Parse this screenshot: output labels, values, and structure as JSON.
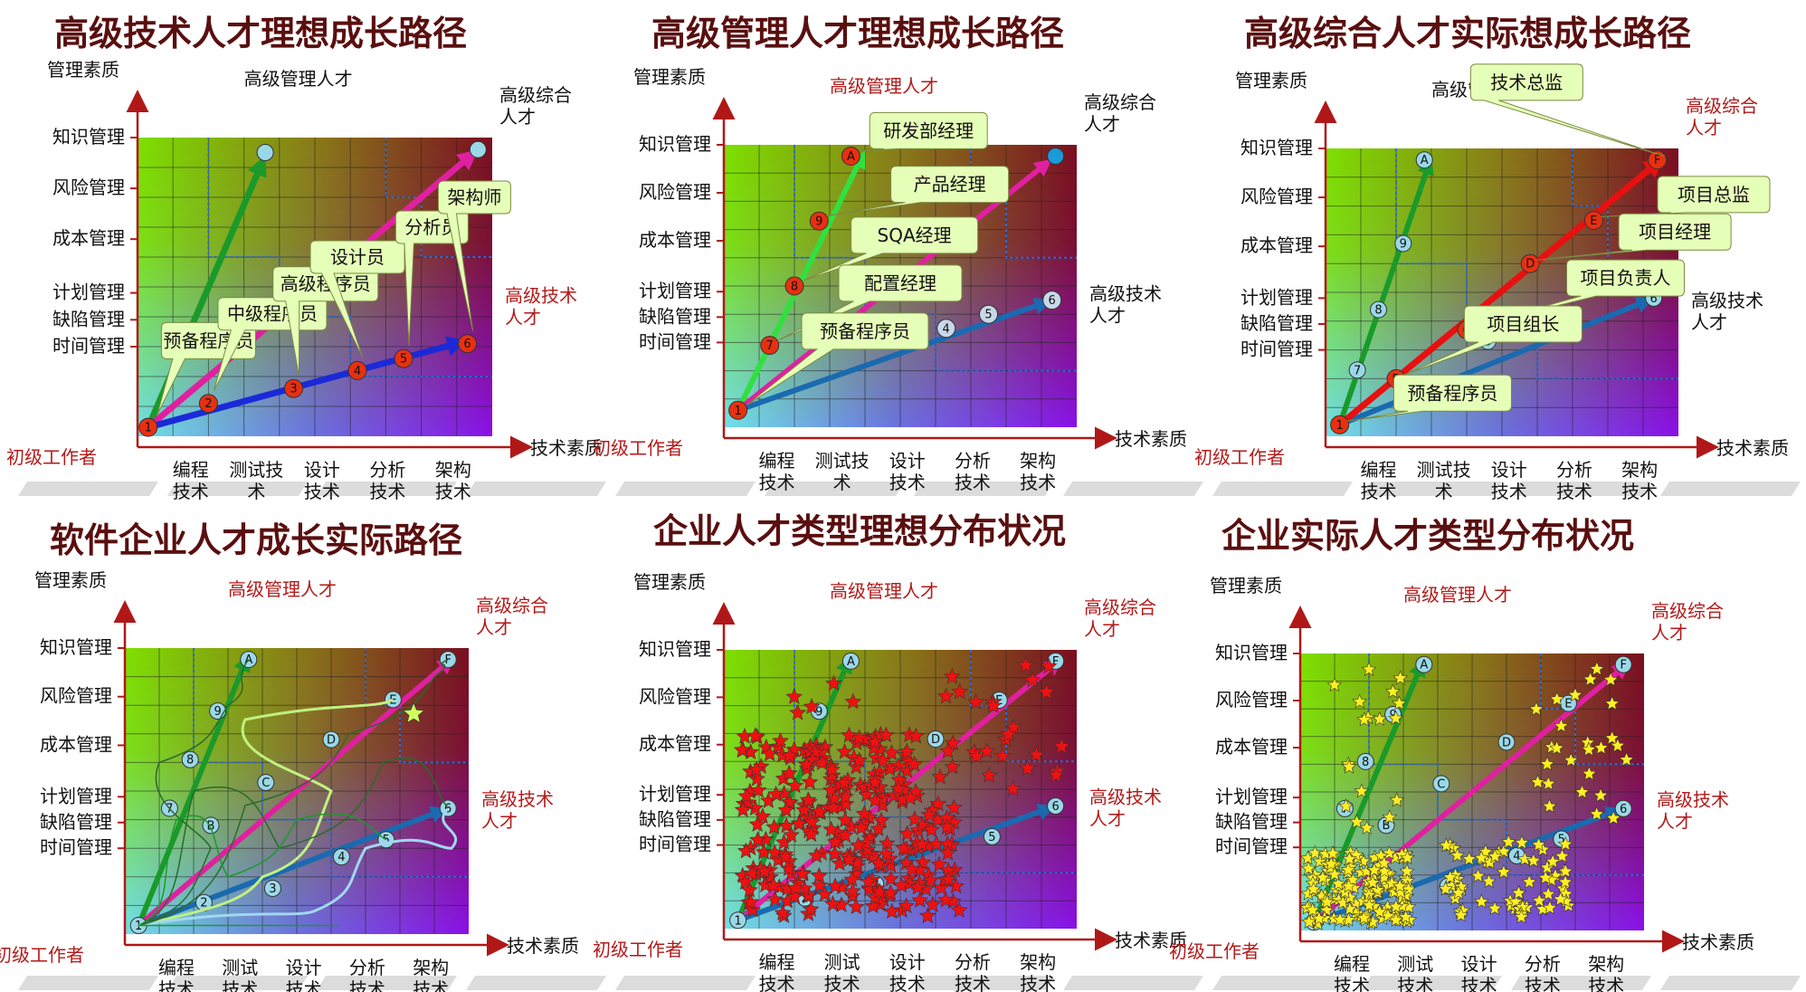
{
  "panels": [
    {
      "title": "高级技术人才理想成长路径",
      "y_axis_title": "管理素质",
      "x_axis_title": "技术素质",
      "y_levels": [
        "知识管理",
        "风险管理",
        "成本管理",
        "计划管理",
        "缺陷管理",
        "时间管理"
      ],
      "x_levels": [
        [
          "编程",
          "技术"
        ],
        [
          "测试技",
          "术"
        ],
        [
          "设计",
          "技术"
        ],
        [
          "分析",
          "技术"
        ],
        [
          "架构",
          "技术"
        ]
      ],
      "corner_start": "初级工作者",
      "corner_manager": "高级管理人才",
      "corner_full": [
        "高级综合",
        "人才"
      ],
      "corner_tech": [
        "高级技术",
        "人才"
      ],
      "corner_colors": {
        "manager": "black",
        "full": "black",
        "tech": "red"
      },
      "path_nodes": [
        "1",
        "2",
        "3",
        "4",
        "5",
        "6"
      ],
      "callouts": [
        "预备程序员",
        "中级程序员",
        "高级程序员",
        "设计员",
        "分析员",
        "架构师"
      ]
    },
    {
      "title": "高级管理人才理想成长路径",
      "y_axis_title": "管理素质",
      "x_axis_title": "技术素质",
      "y_levels": [
        "知识管理",
        "风险管理",
        "成本管理",
        "计划管理",
        "缺陷管理",
        "时间管理"
      ],
      "x_levels": [
        [
          "编程",
          "技术"
        ],
        [
          "测试技",
          "术"
        ],
        [
          "设计",
          "技术"
        ],
        [
          "分析",
          "技术"
        ],
        [
          "架构",
          "技术"
        ]
      ],
      "corner_start": "初级工作者",
      "corner_manager": "高级管理人才",
      "corner_full": [
        "高级综合",
        "人才"
      ],
      "corner_tech": [
        "高级技术",
        "人才"
      ],
      "corner_colors": {
        "manager": "red",
        "full": "black",
        "tech": "black"
      },
      "path_nodes": [
        "1",
        "7",
        "8",
        "9",
        "A"
      ],
      "tech_nodes": [
        "4",
        "5",
        "6"
      ],
      "callouts": [
        "研发部经理",
        "产品经理",
        "SQA经理",
        "配置经理",
        "预备程序员"
      ]
    },
    {
      "title": "高级综合人才实际想成长路径",
      "y_axis_title": "管理素质",
      "x_axis_title": "技术素质",
      "y_levels": [
        "知识管理",
        "风险管理",
        "成本管理",
        "计划管理",
        "缺陷管理",
        "时间管理"
      ],
      "x_levels": [
        [
          "编程",
          "技术"
        ],
        [
          "测试技",
          "术"
        ],
        [
          "设计",
          "技术"
        ],
        [
          "分析",
          "技术"
        ],
        [
          "架构",
          "技术"
        ]
      ],
      "corner_start": "初级工作者",
      "corner_manager": "高级管理人才",
      "corner_full": [
        "高级综合",
        "人才"
      ],
      "corner_tech": [
        "高级技术",
        "人才"
      ],
      "corner_colors": {
        "manager": "black",
        "full": "red",
        "tech": "black"
      },
      "path_nodes": [
        "1",
        "B",
        "C",
        "D",
        "E",
        "F"
      ],
      "manager_nodes": [
        "7",
        "8",
        "9",
        "A"
      ],
      "tech_nodes": [
        "3",
        "6"
      ],
      "callouts": [
        "技术总监",
        "项目总监",
        "项目经理",
        "项目负责人",
        "项目组长",
        "预备程序员"
      ]
    },
    {
      "title": "软件企业人才成长实际路径",
      "y_axis_title": "管理素质",
      "x_axis_title": "技术素质",
      "y_levels": [
        "知识管理",
        "风险管理",
        "成本管理",
        "计划管理",
        "缺陷管理",
        "时间管理"
      ],
      "x_levels": [
        [
          "编程",
          "技术"
        ],
        [
          "测试",
          "技术"
        ],
        [
          "设计",
          "技术"
        ],
        [
          "分析",
          "技术"
        ],
        [
          "架构",
          "技术"
        ]
      ],
      "corner_start": "初级工作者",
      "corner_manager": "高级管理人才",
      "corner_full": [
        "高级综合",
        "人才"
      ],
      "corner_tech": [
        "高级技术",
        "人才"
      ],
      "corner_colors": {
        "manager": "red",
        "full": "red",
        "tech": "red"
      },
      "manager_nodes": [
        "7",
        "8",
        "9",
        "A"
      ],
      "full_nodes": [
        "B",
        "C",
        "D",
        "E",
        "F"
      ],
      "tech_nodes": [
        "2",
        "3",
        "4",
        "5",
        "6"
      ],
      "start_node": "1"
    },
    {
      "title": "企业人才类型理想分布状况",
      "y_axis_title": "管理素质",
      "x_axis_title": "技术素质",
      "y_levels": [
        "知识管理",
        "风险管理",
        "成本管理",
        "计划管理",
        "缺陷管理",
        "时间管理"
      ],
      "x_levels": [
        [
          "编程",
          "技术"
        ],
        [
          "测试",
          "技术"
        ],
        [
          "设计",
          "技术"
        ],
        [
          "分析",
          "技术"
        ],
        [
          "架构",
          "技术"
        ]
      ],
      "corner_start": "初级工作者",
      "corner_manager": "高级管理人才",
      "corner_full": [
        "高级综合",
        "人才"
      ],
      "corner_tech": [
        "高级技术",
        "人才"
      ],
      "corner_colors": {
        "manager": "red",
        "full": "red",
        "tech": "red"
      },
      "manager_nodes": [
        "9",
        "A"
      ],
      "full_nodes": [
        "D",
        "E",
        "F"
      ],
      "tech_nodes": [
        "2",
        "3",
        "5",
        "6"
      ],
      "start_node": "1",
      "star_color": "#ee1111"
    },
    {
      "title": "企业实际人才类型分布状况",
      "y_axis_title": "管理素质",
      "x_axis_title": "技术素质",
      "y_levels": [
        "知识管理",
        "风险管理",
        "成本管理",
        "计划管理",
        "缺陷管理",
        "时间管理"
      ],
      "x_levels": [
        [
          "编程",
          "技术"
        ],
        [
          "测试",
          "技术"
        ],
        [
          "设计",
          "技术"
        ],
        [
          "分析",
          "技术"
        ],
        [
          "架构",
          "技术"
        ]
      ],
      "corner_start": "初级工作者",
      "corner_manager": "高级管理人才",
      "corner_full": [
        "高级综合",
        "人才"
      ],
      "corner_tech": [
        "高级技术",
        "人才"
      ],
      "corner_colors": {
        "manager": "red",
        "full": "red",
        "tech": "red"
      },
      "manager_nodes": [
        "7",
        "8",
        "9",
        "A"
      ],
      "full_nodes": [
        "B",
        "C",
        "D",
        "E",
        "F"
      ],
      "tech_nodes": [
        "3",
        "4",
        "5",
        "6"
      ],
      "start_node": "1",
      "star_color": "#ffee22"
    }
  ]
}
